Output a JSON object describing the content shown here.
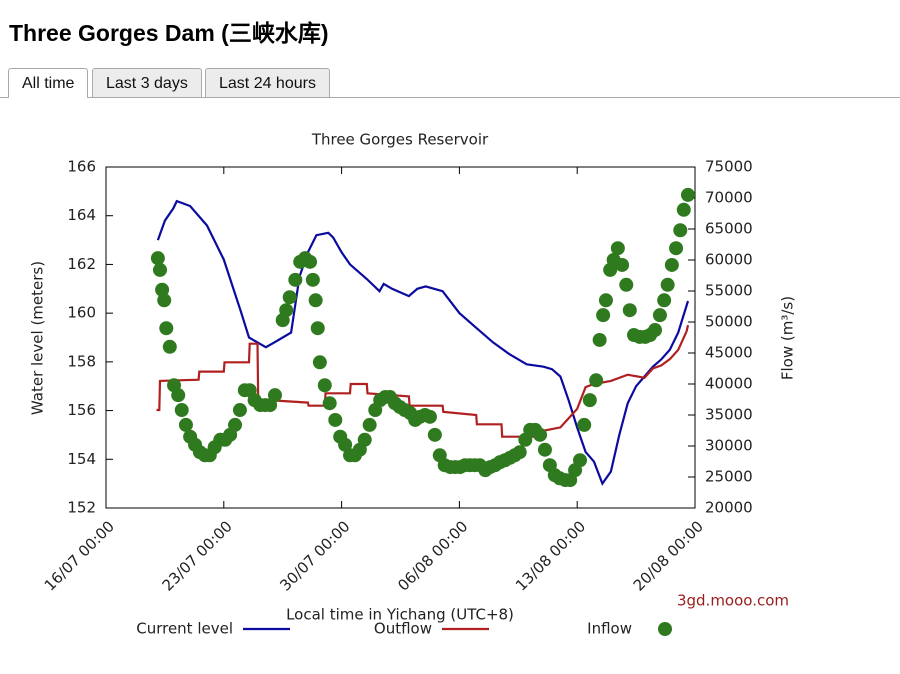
{
  "header": {
    "title": "Three Gorges Dam (三峡水库)"
  },
  "tabs": [
    {
      "label": "All time",
      "active": true
    },
    {
      "label": "Last 3 days",
      "active": false
    },
    {
      "label": "Last 24 hours",
      "active": false
    }
  ],
  "chart_data": {
    "type": "line",
    "title": "Three Gorges Reservoir",
    "x_label": "Local time in Yichang (UTC+8)",
    "y_label": "Water level (meters)",
    "y2_label": "Flow (m³/s)",
    "source": "3gd.mooo.com",
    "xlim": [
      "16/07 00:00",
      "20/08 00:00"
    ],
    "xticks": [
      "16/07 00:00",
      "23/07 00:00",
      "30/07 00:00",
      "06/08 00:00",
      "13/08 00:00",
      "20/08 00:00"
    ],
    "ylim": [
      152,
      166
    ],
    "yticks": [
      152,
      154,
      156,
      158,
      160,
      162,
      164,
      166
    ],
    "y2lim": [
      20000,
      75000
    ],
    "y2ticks": [
      20000,
      25000,
      30000,
      35000,
      40000,
      45000,
      50000,
      55000,
      60000,
      65000,
      70000,
      75000
    ],
    "series": [
      {
        "name": "Current level",
        "color": "#0b0ba0",
        "style": "line",
        "x": [
          "19/07 02:00",
          "19/07 12:00",
          "20/07 00:00",
          "20/07 05:00",
          "21/07 00:00",
          "22/07 00:00",
          "23/07 00:00",
          "24/07 00:00",
          "24/07 12:00",
          "25/07 00:00",
          "25/07 12:00",
          "26/07 00:00",
          "26/07 12:00",
          "27/07 00:00",
          "27/07 12:00",
          "28/07 00:00",
          "28/07 12:00",
          "29/07 05:00",
          "29/07 12:00",
          "30/07 00:00",
          "30/07 12:00",
          "31/07 12:00",
          "01/08 06:00",
          "01/08 12:00",
          "02/08 00:00",
          "03/08 00:00",
          "03/08 12:00",
          "04/08 00:00",
          "05/08 00:00",
          "06/08 00:00",
          "07/08 00:00",
          "08/08 00:00",
          "09/08 00:00",
          "10/08 00:00",
          "11/08 00:00",
          "11/08 12:00",
          "12/08 00:00",
          "12/08 12:00",
          "13/08 00:00",
          "13/08 12:00",
          "14/08 00:00",
          "14/08 12:00",
          "15/08 00:00",
          "15/08 12:00",
          "16/08 00:00",
          "16/08 12:00",
          "17/08 00:00",
          "17/08 12:00",
          "18/08 00:00",
          "18/08 12:00",
          "19/08 00:00",
          "19/08 14:00"
        ],
        "values": [
          163.0,
          163.8,
          164.3,
          164.6,
          164.4,
          163.6,
          162.2,
          160.1,
          159.0,
          158.8,
          158.6,
          158.8,
          159.0,
          159.2,
          161.5,
          162.5,
          163.2,
          163.3,
          163.1,
          162.5,
          162.0,
          161.4,
          160.9,
          161.2,
          161.0,
          160.7,
          161.0,
          161.1,
          160.9,
          160.0,
          159.4,
          158.8,
          158.3,
          157.9,
          157.8,
          157.7,
          157.4,
          156.4,
          155.3,
          154.3,
          153.9,
          153.0,
          153.5,
          155.0,
          156.3,
          157.0,
          157.4,
          157.8,
          158.1,
          158.5,
          159.2,
          160.5
        ]
      },
      {
        "name": "Outflow",
        "color": "#b02020",
        "style": "line",
        "axis": "y2",
        "x": [
          "19/07 00:00",
          "19/07 04:00",
          "19/07 05:00",
          "21/07 12:00",
          "21/07 13:00",
          "23/07 00:00",
          "23/07 01:00",
          "24/07 12:00",
          "24/07 13:00",
          "25/07 00:00",
          "25/07 01:00",
          "28/07 00:00",
          "28/07 01:00",
          "29/07 00:00",
          "29/07 01:00",
          "30/07 12:00",
          "30/07 13:00",
          "31/07 12:00",
          "31/07 13:00",
          "03/08 00:00",
          "03/08 01:00",
          "05/08 00:00",
          "05/08 01:00",
          "07/08 00:00",
          "07/08 01:00",
          "08/08 12:00",
          "08/08 13:00",
          "11/08 00:00",
          "11/08 01:00",
          "12/08 00:00",
          "12/08 12:00",
          "13/08 00:00",
          "13/08 12:00",
          "14/08 00:00",
          "15/08 00:00",
          "16/08 00:00",
          "17/08 00:00",
          "17/08 12:00",
          "18/08 00:00",
          "18/08 12:00",
          "19/08 00:00",
          "19/08 12:00",
          "19/08 14:00"
        ],
        "values": [
          35800,
          35800,
          40500,
          40700,
          42000,
          42000,
          43500,
          43500,
          46500,
          46500,
          37500,
          37000,
          36500,
          36500,
          38500,
          38500,
          40000,
          40000,
          38500,
          38000,
          36500,
          36500,
          35500,
          35000,
          33500,
          33500,
          31500,
          31500,
          32500,
          33000,
          34500,
          36000,
          39500,
          40000,
          40500,
          41500,
          41000,
          42500,
          43000,
          44000,
          45500,
          48500,
          49500
        ]
      },
      {
        "name": "Inflow",
        "color": "#2f7a1f",
        "style": "scatter",
        "axis": "y2",
        "x": [
          "19/07 02:00",
          "19/07 05:00",
          "19/07 08:00",
          "19/07 11:00",
          "19/07 14:00",
          "19/07 19:00",
          "20/07 01:00",
          "20/07 07:00",
          "20/07 12:00",
          "20/07 18:00",
          "21/07 00:00",
          "21/07 07:00",
          "21/07 14:00",
          "21/07 21:00",
          "22/07 04:00",
          "22/07 11:00",
          "22/07 19:00",
          "23/07 02:00",
          "23/07 09:00",
          "23/07 16:00",
          "23/07 23:00",
          "24/07 06:00",
          "24/07 13:00",
          "24/07 20:00",
          "25/07 04:00",
          "25/07 11:00",
          "25/07 18:00",
          "26/07 01:00",
          "26/07 12:00",
          "26/07 17:00",
          "26/07 22:00",
          "27/07 06:00",
          "27/07 13:00",
          "27/07 20:00",
          "28/07 03:00",
          "28/07 07:00",
          "28/07 11:00",
          "28/07 14:00",
          "28/07 17:00",
          "29/07 00:00",
          "29/07 07:00",
          "29/07 15:00",
          "29/07 22:00",
          "30/07 05:00",
          "30/07 12:00",
          "30/07 19:00",
          "31/07 02:00",
          "31/07 09:00",
          "31/07 16:00",
          "01/08 00:00",
          "01/08 07:00",
          "01/08 14:00",
          "01/08 21:00",
          "02/08 04:00",
          "02/08 11:00",
          "02/08 18:00",
          "03/08 02:00",
          "03/08 09:00",
          "03/08 16:00",
          "03/08 23:00",
          "04/08 06:00",
          "04/08 13:00",
          "04/08 20:00",
          "05/08 03:00",
          "05/08 11:00",
          "05/08 18:00",
          "06/08 01:00",
          "06/08 08:00",
          "06/08 15:00",
          "06/08 22:00",
          "07/08 05:00",
          "07/08 13:00",
          "07/08 20:00",
          "08/08 03:00",
          "08/08 10:00",
          "08/08 17:00",
          "09/08 00:00",
          "09/08 07:00",
          "09/08 14:00",
          "09/08 22:00",
          "10/08 05:00",
          "10/08 12:00",
          "10/08 19:00",
          "11/08 02:00",
          "11/08 09:00",
          "11/08 16:00",
          "11/08 23:00",
          "12/08 07:00",
          "12/08 14:00",
          "12/08 21:00",
          "13/08 04:00",
          "13/08 10:00",
          "13/08 18:00",
          "14/08 03:00",
          "14/08 08:00",
          "14/08 13:00",
          "14/08 17:00",
          "14/08 23:00",
          "15/08 04:00",
          "15/08 10:00",
          "15/08 16:00",
          "15/08 22:00",
          "16/08 03:00",
          "16/08 09:00",
          "16/08 17:00",
          "17/08 01:00",
          "17/08 08:00",
          "17/08 15:00",
          "17/08 22:00",
          "18/08 04:00",
          "18/08 09:00",
          "18/08 15:00",
          "18/08 21:00",
          "19/08 03:00",
          "19/08 08:00",
          "19/08 14:00"
        ],
        "values": [
          60300,
          58400,
          55200,
          53500,
          49000,
          46000,
          39800,
          38200,
          35800,
          33400,
          31500,
          30200,
          29000,
          28500,
          28500,
          29800,
          31000,
          31000,
          31800,
          33400,
          35800,
          39000,
          39000,
          37400,
          36600,
          36600,
          36600,
          38200,
          50300,
          51900,
          54000,
          56800,
          59700,
          60300,
          59700,
          56800,
          53500,
          49000,
          43500,
          39800,
          36900,
          34200,
          31500,
          30200,
          28500,
          28500,
          29400,
          31000,
          33400,
          35800,
          37400,
          37900,
          37900,
          36900,
          36300,
          35800,
          35300,
          34200,
          34700,
          35000,
          34700,
          31800,
          28500,
          26900,
          26600,
          26600,
          26600,
          26900,
          26900,
          26900,
          26900,
          26100,
          26600,
          26900,
          27400,
          27700,
          28100,
          28500,
          29000,
          31000,
          32600,
          32600,
          31800,
          29400,
          26900,
          25300,
          24800,
          24500,
          24500,
          26100,
          27700,
          33400,
          37400,
          40600,
          47100,
          51100,
          53500,
          58400,
          60000,
          61900,
          59200,
          56000,
          51900,
          47900,
          47600,
          47600,
          47900,
          48700,
          51100,
          53500,
          56000,
          59200,
          61900,
          64800,
          68100,
          70500
        ]
      }
    ]
  }
}
